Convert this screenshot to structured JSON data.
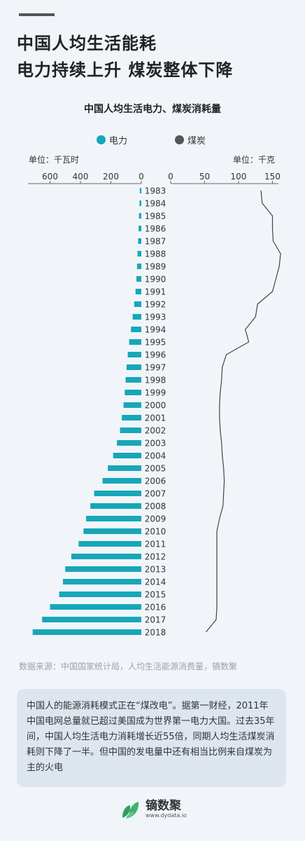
{
  "headline": {
    "line1": "中国人均生活能耗",
    "line2": "电力持续上升 煤炭整体下降"
  },
  "chart_data": {
    "type": "bar",
    "title": "中国人均生活电力、煤炭消耗量",
    "colors": {
      "electricity": "#17a7b8",
      "coal": "#444444"
    },
    "legend": [
      "电力",
      "煤炭"
    ],
    "left_unit": "单位：千瓦时",
    "right_unit": "单位：千克",
    "left_ticks": [
      "600",
      "400",
      "200",
      "0"
    ],
    "right_ticks": [
      "0",
      "50",
      "100",
      "150"
    ],
    "left_axis_range": [
      0,
      700
    ],
    "right_axis_range": [
      0,
      160
    ],
    "categories": [
      "1983",
      "1984",
      "1985",
      "1986",
      "1987",
      "1988",
      "1989",
      "1990",
      "1991",
      "1992",
      "1993",
      "1994",
      "1995",
      "1996",
      "1997",
      "1998",
      "1999",
      "2000",
      "2001",
      "2002",
      "2003",
      "2004",
      "2005",
      "2006",
      "2007",
      "2008",
      "2009",
      "2010",
      "2011",
      "2012",
      "2013",
      "2014",
      "2015",
      "2016",
      "2017",
      "2018"
    ],
    "series": [
      {
        "name": "电力",
        "type": "bar",
        "axis": "left",
        "values": [
          10,
          12,
          15,
          18,
          21,
          25,
          28,
          32,
          38,
          47,
          57,
          68,
          80,
          89,
          97,
          103,
          109,
          117,
          128,
          140,
          160,
          185,
          220,
          255,
          310,
          335,
          363,
          380,
          412,
          460,
          500,
          515,
          540,
          600,
          652,
          714
        ]
      },
      {
        "name": "煤炭",
        "type": "line",
        "axis": "right",
        "values": [
          133,
          135,
          150,
          150,
          151,
          162,
          160,
          155,
          150,
          128,
          125,
          110,
          115,
          82,
          76,
          75,
          73,
          72,
          72,
          73,
          75,
          76,
          78,
          79,
          78,
          77,
          72,
          68,
          68,
          68,
          68,
          68,
          68,
          68,
          67,
          52
        ]
      }
    ]
  },
  "source_text": "数据来源：中国国家统计局，人均生活能源消费量，镝数聚",
  "note_text": "中国人的能源消耗模式正在“煤改电”。据第一财经，2011年中国电网总量就已超过美国成为世界第一电力大国。过去35年间，中国人均生活电力消耗增长近55倍，同期人均生活煤炭消耗则下降了一半。但中国的发电量中还有相当比例来自煤炭为主的火电",
  "logo": {
    "name": "镝数聚",
    "url": "www.dydata.io"
  }
}
